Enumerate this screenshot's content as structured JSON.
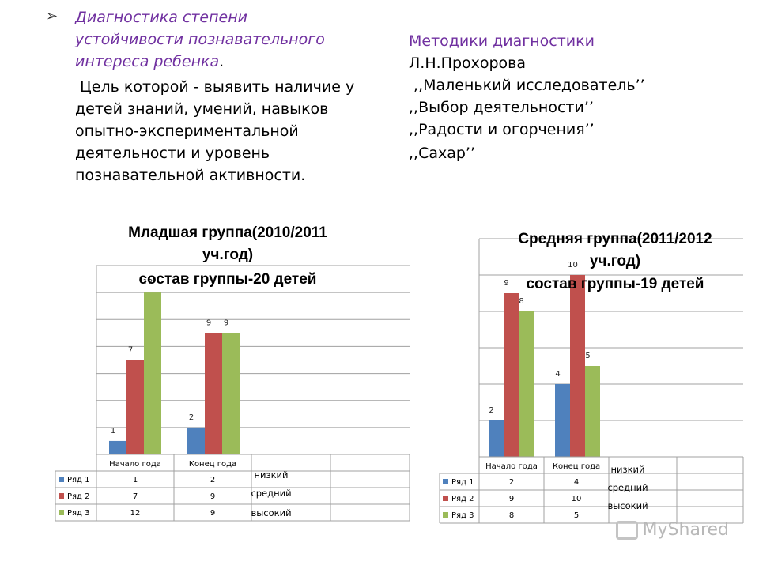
{
  "left_text": {
    "title_lines": [
      "Диагностика степени",
      "устойчивости познавательного",
      "интереса ребенка"
    ],
    "title_end": ".",
    "body_lines": [
      " Цель которой - выявить наличие у",
      "детей знаний, умений, навыков",
      "опытно-экспериментальной",
      "деятельности и уровень",
      "познавательной активности."
    ]
  },
  "right_text": {
    "title": "Методики диагностики",
    "lines": [
      "Л.Н.Прохорова",
      " ,,Маленький исследователь’’",
      ",,Выбор деятельности’’",
      ",,Радости и огорчения’’",
      ",,Сахар’’"
    ]
  },
  "colors": {
    "series1": "#4f81bd",
    "series2": "#c0504d",
    "series3": "#9bbb59",
    "accent": "#7030a0"
  },
  "watermark": "MyShared",
  "chart_data": [
    {
      "type": "bar",
      "title_lines": [
        "Младшая группа(2010/2011",
        "уч.год)",
        "состав группы-20 детей"
      ],
      "categories": [
        "Начало года",
        "Конец года"
      ],
      "series": [
        {
          "name": "Ряд 1",
          "values": [
            1,
            2
          ],
          "level": "низкий"
        },
        {
          "name": "Ряд 2",
          "values": [
            7,
            9
          ],
          "level": "средний"
        },
        {
          "name": "Ряд 3",
          "values": [
            12,
            9
          ],
          "level": "высокий"
        }
      ],
      "ylim": [
        0,
        14
      ],
      "grid": true,
      "legend": "data table"
    },
    {
      "type": "bar",
      "title_lines": [
        "Средняя группа(2011/2012",
        "уч.год)",
        "состав группы-19 детей"
      ],
      "categories": [
        "Начало года",
        "Конец года"
      ],
      "series": [
        {
          "name": "Ряд 1",
          "values": [
            2,
            4
          ],
          "level": "низкий"
        },
        {
          "name": "Ряд 2",
          "values": [
            9,
            10
          ],
          "level": "средний"
        },
        {
          "name": "Ряд 3",
          "values": [
            8,
            5
          ],
          "level": "высокий"
        }
      ],
      "ylim": [
        0,
        12
      ],
      "grid": true,
      "legend": "data table"
    }
  ]
}
